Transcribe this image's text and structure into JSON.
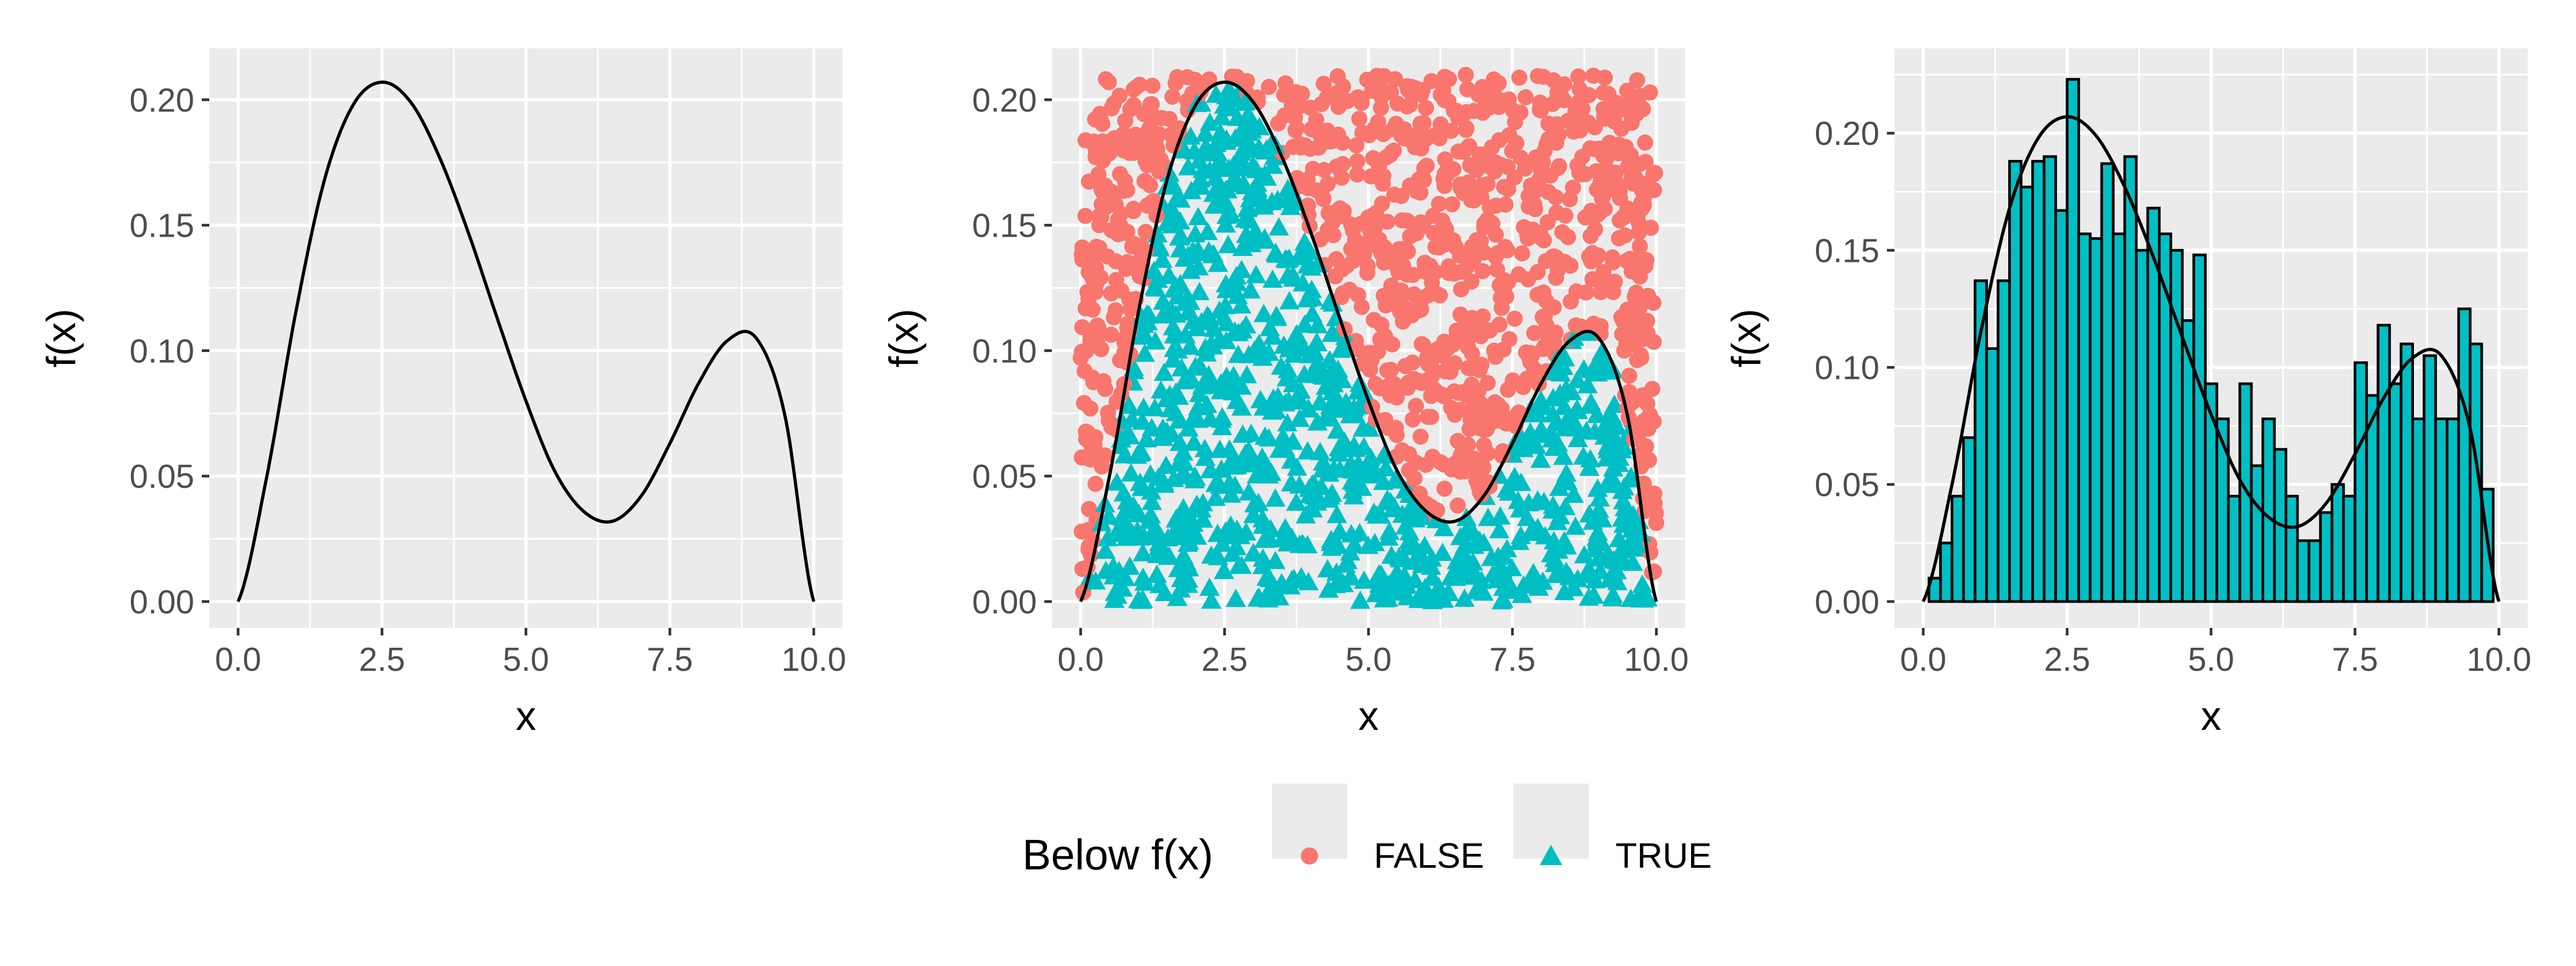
{
  "legend": {
    "title": "Below f(x)",
    "position": "bottom",
    "entries": [
      {
        "label": "FALSE",
        "color": "#F8766D",
        "shape": "circle"
      },
      {
        "label": "TRUE",
        "color": "#00BFC4",
        "shape": "triangle"
      }
    ]
  },
  "colors": {
    "panel_bg": "#EBEBEB",
    "grid": "#FFFFFF",
    "axis_text": "#4D4D4D",
    "curve": "#000000",
    "false_points": "#F8766D",
    "true_points": "#00BFC4",
    "bars": "#00BFC4"
  },
  "chart_data": [
    {
      "type": "line",
      "title": "",
      "xlabel": "x",
      "ylabel": "f(x)",
      "xlim": [
        0,
        10
      ],
      "ylim": [
        0,
        0.21
      ],
      "x_ticks": [
        "0.0",
        "2.5",
        "5.0",
        "7.5",
        "10.0"
      ],
      "y_ticks": [
        "0.00",
        "0.05",
        "0.10",
        "0.15",
        "0.20"
      ],
      "grid": true,
      "series": [
        {
          "x": [
            0,
            0.5,
            1,
            1.5,
            2,
            2.5,
            3,
            3.5,
            4,
            4.5,
            5,
            5.5,
            6,
            6.5,
            7,
            7.5,
            8,
            8.5,
            9,
            9.5,
            10
          ],
          "y": [
            0,
            0.05,
            0.115,
            0.168,
            0.198,
            0.207,
            0.199,
            0.177,
            0.147,
            0.113,
            0.08,
            0.052,
            0.036,
            0.032,
            0.042,
            0.063,
            0.087,
            0.104,
            0.105,
            0.074,
            0
          ]
        }
      ]
    },
    {
      "type": "scatter",
      "title": "",
      "xlabel": "x",
      "ylabel": "f(x)",
      "xlim": [
        0,
        10
      ],
      "ylim": [
        0,
        0.21
      ],
      "x_ticks": [
        "0.0",
        "2.5",
        "5.0",
        "7.5",
        "10.0"
      ],
      "y_ticks": [
        "0.00",
        "0.05",
        "0.10",
        "0.15",
        "0.20"
      ],
      "grid": true,
      "points": {
        "count_approx": 2000,
        "x_range": [
          0,
          10
        ],
        "y_range": [
          0,
          0.21
        ],
        "rule": "TRUE when y < f(x), otherwise FALSE"
      },
      "series": [
        {
          "name": "FALSE",
          "color": "#F8766D",
          "shape": "circle"
        },
        {
          "name": "TRUE",
          "color": "#00BFC4",
          "shape": "triangle"
        }
      ],
      "curve": "f(x)"
    },
    {
      "type": "bar",
      "title": "",
      "xlabel": "x",
      "ylabel": "f(x)",
      "xlim": [
        0,
        10
      ],
      "ylim": [
        0,
        0.225
      ],
      "x_ticks": [
        "0.0",
        "2.5",
        "5.0",
        "7.5",
        "10.0"
      ],
      "y_ticks": [
        "0.00",
        "0.05",
        "0.10",
        "0.15",
        "0.20"
      ],
      "grid": true,
      "bin_width": 0.2,
      "bin_starts": [
        0.1,
        0.3,
        0.5,
        0.7,
        0.9,
        1.1,
        1.3,
        1.5,
        1.7,
        1.9,
        2.1,
        2.3,
        2.5,
        2.7,
        2.9,
        3.1,
        3.3,
        3.5,
        3.7,
        3.9,
        4.1,
        4.3,
        4.5,
        4.7,
        4.9,
        5.1,
        5.3,
        5.5,
        5.7,
        5.9,
        6.1,
        6.3,
        6.5,
        6.7,
        6.9,
        7.1,
        7.3,
        7.5,
        7.7,
        7.9,
        8.1,
        8.3,
        8.5,
        8.7,
        8.9,
        9.1,
        9.3,
        9.5,
        9.7
      ],
      "values": [
        0.01,
        0.025,
        0.045,
        0.07,
        0.137,
        0.108,
        0.137,
        0.188,
        0.177,
        0.188,
        0.19,
        0.167,
        0.223,
        0.157,
        0.155,
        0.187,
        0.157,
        0.19,
        0.15,
        0.168,
        0.157,
        0.15,
        0.12,
        0.148,
        0.093,
        0.078,
        0.045,
        0.093,
        0.058,
        0.078,
        0.065,
        0.045,
        0.026,
        0.026,
        0.038,
        0.05,
        0.045,
        0.102,
        0.088,
        0.118,
        0.093,
        0.11,
        0.078,
        0.105,
        0.078,
        0.078,
        0.125,
        0.11,
        0.048
      ],
      "curve": "f(x)"
    }
  ]
}
